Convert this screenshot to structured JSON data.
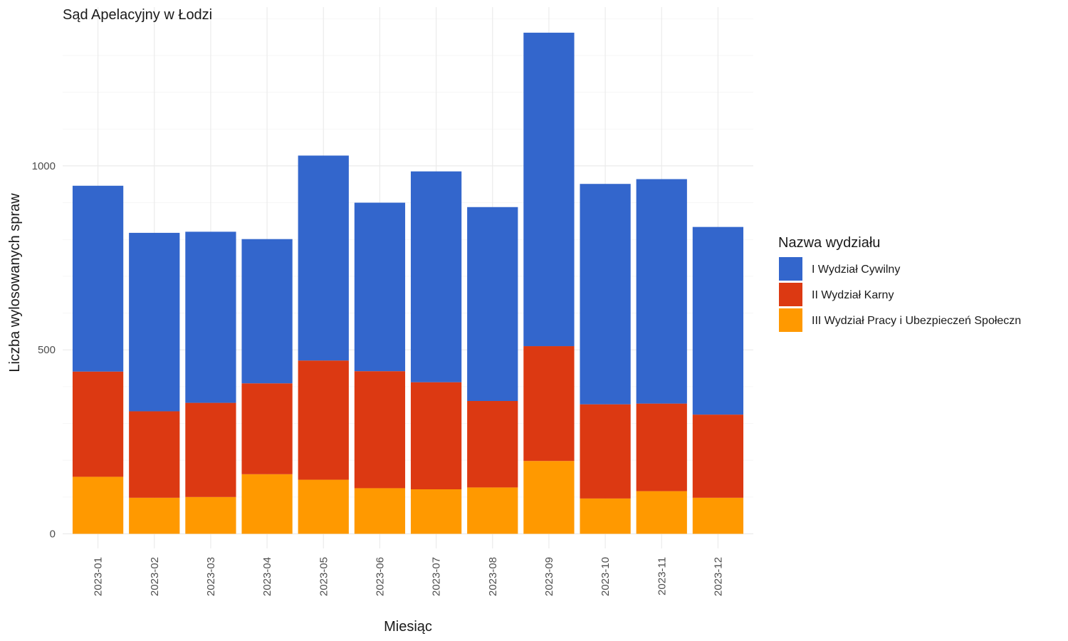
{
  "chart_data": {
    "type": "bar",
    "stacked": true,
    "title": "Sąd Apelacyjny w Łodzi",
    "xlabel": "Miesiąc",
    "ylabel": "Liczba wylosowanych spraw",
    "categories": [
      "2023-01",
      "2023-02",
      "2023-03",
      "2023-04",
      "2023-05",
      "2023-06",
      "2023-07",
      "2023-08",
      "2023-09",
      "2023-10",
      "2023-11",
      "2023-12"
    ],
    "ylim": [
      0,
      1430
    ],
    "yticks": [
      0,
      500,
      1000
    ],
    "ytick_labels": [
      "0",
      "500",
      "1000"
    ],
    "grid": true,
    "legend": {
      "title": "Nazwa wydziału",
      "position": "right"
    },
    "series": [
      {
        "name": "III Wydział Pracy i Ubezpieczeń Społeczn",
        "color": "#FF9900",
        "values": [
          155,
          98,
          100,
          162,
          147,
          124,
          121,
          126,
          198,
          96,
          116,
          98
        ]
      },
      {
        "name": "II Wydział Karny",
        "color": "#DC3912",
        "values": [
          286,
          235,
          256,
          247,
          324,
          318,
          291,
          235,
          312,
          256,
          238,
          226
        ]
      },
      {
        "name": "I Wydział Cywilny",
        "color": "#3366CC",
        "values": [
          505,
          485,
          465,
          392,
          557,
          458,
          573,
          527,
          852,
          599,
          610,
          510
        ]
      }
    ],
    "legend_order": [
      "I Wydział Cywilny",
      "II Wydział Karny",
      "III Wydział Pracy i Ubezpieczeń Społeczn"
    ]
  }
}
